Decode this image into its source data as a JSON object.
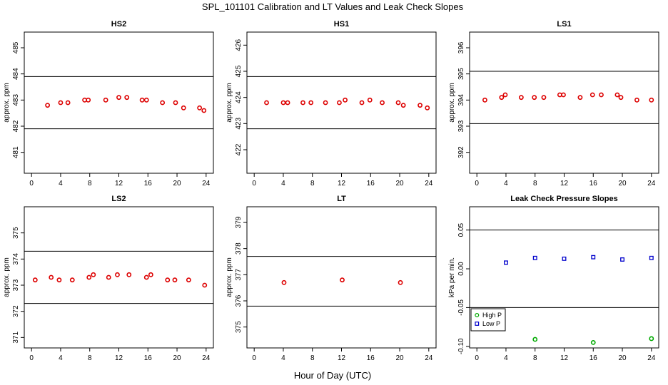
{
  "figure": {
    "title": "SPL_101101  Calibration and LT Values and Leak Check Slopes",
    "xlabel": "Hour of Day (UTC)"
  },
  "colors": {
    "cal": "#dd0000",
    "high": "#00aa00",
    "low": "#0000cc",
    "axis": "#000000"
  },
  "chart_data": [
    {
      "type": "scatter",
      "title": "HS2",
      "ylabel": "approx. ppm",
      "xlim": [
        -1,
        25
      ],
      "ylim": [
        480.2,
        485.6
      ],
      "xticks": [
        0,
        4,
        8,
        12,
        16,
        20,
        24
      ],
      "yticks": [
        481,
        482,
        483,
        484,
        485
      ],
      "hlines": [
        481.9,
        483.9
      ],
      "series": [
        {
          "marker": "circle",
          "color": "#dd0000",
          "points": [
            [
              2.2,
              482.8
            ],
            [
              4.0,
              482.9
            ],
            [
              5.0,
              482.9
            ],
            [
              7.3,
              483.0
            ],
            [
              7.8,
              483.0
            ],
            [
              10.2,
              483.0
            ],
            [
              12.0,
              483.1
            ],
            [
              13.1,
              483.1
            ],
            [
              15.2,
              483.0
            ],
            [
              15.8,
              483.0
            ],
            [
              18.0,
              482.9
            ],
            [
              19.8,
              482.9
            ],
            [
              20.9,
              482.7
            ],
            [
              23.1,
              482.7
            ],
            [
              23.7,
              482.6
            ]
          ]
        }
      ]
    },
    {
      "type": "scatter",
      "title": "HS1",
      "ylabel": "approx. ppm",
      "xlim": [
        -1,
        25
      ],
      "ylim": [
        421.1,
        426.5
      ],
      "xticks": [
        0,
        4,
        8,
        12,
        16,
        20,
        24
      ],
      "yticks": [
        422,
        423,
        424,
        425,
        426
      ],
      "hlines": [
        422.8,
        424.8
      ],
      "series": [
        {
          "marker": "circle",
          "color": "#dd0000",
          "points": [
            [
              1.7,
              423.8
            ],
            [
              4.0,
              423.8
            ],
            [
              4.6,
              423.8
            ],
            [
              6.7,
              423.8
            ],
            [
              7.8,
              423.8
            ],
            [
              9.8,
              423.8
            ],
            [
              11.7,
              423.8
            ],
            [
              12.5,
              423.9
            ],
            [
              14.8,
              423.8
            ],
            [
              15.9,
              423.9
            ],
            [
              17.6,
              423.8
            ],
            [
              19.8,
              423.8
            ],
            [
              20.5,
              423.7
            ],
            [
              22.8,
              423.7
            ],
            [
              23.8,
              423.6
            ]
          ]
        }
      ]
    },
    {
      "type": "scatter",
      "title": "LS1",
      "ylabel": "approx. ppm",
      "xlim": [
        -1,
        25
      ],
      "ylim": [
        391.2,
        396.6
      ],
      "xticks": [
        0,
        4,
        8,
        12,
        16,
        20,
        24
      ],
      "yticks": [
        392,
        393,
        394,
        395,
        396
      ],
      "hlines": [
        393.1,
        395.1
      ],
      "series": [
        {
          "marker": "circle",
          "color": "#dd0000",
          "points": [
            [
              1.1,
              394.0
            ],
            [
              3.4,
              394.1
            ],
            [
              3.9,
              394.2
            ],
            [
              6.1,
              394.1
            ],
            [
              7.9,
              394.1
            ],
            [
              9.2,
              394.1
            ],
            [
              11.4,
              394.2
            ],
            [
              11.9,
              394.2
            ],
            [
              14.2,
              394.1
            ],
            [
              15.9,
              394.2
            ],
            [
              17.1,
              394.2
            ],
            [
              19.3,
              394.2
            ],
            [
              19.8,
              394.1
            ],
            [
              22.0,
              394.0
            ],
            [
              24.0,
              394.0
            ]
          ]
        }
      ]
    },
    {
      "type": "scatter",
      "title": "LS2",
      "ylabel": "approx. ppm",
      "xlim": [
        -1,
        25
      ],
      "ylim": [
        370.6,
        376.0
      ],
      "xticks": [
        0,
        4,
        8,
        12,
        16,
        20,
        24
      ],
      "yticks": [
        371,
        372,
        373,
        374,
        375
      ],
      "hlines": [
        372.3,
        374.3
      ],
      "series": [
        {
          "marker": "circle",
          "color": "#dd0000",
          "points": [
            [
              0.5,
              373.2
            ],
            [
              2.7,
              373.3
            ],
            [
              3.8,
              373.2
            ],
            [
              5.6,
              373.2
            ],
            [
              7.9,
              373.3
            ],
            [
              8.5,
              373.4
            ],
            [
              10.6,
              373.3
            ],
            [
              11.8,
              373.4
            ],
            [
              13.4,
              373.4
            ],
            [
              15.8,
              373.3
            ],
            [
              16.4,
              373.4
            ],
            [
              18.7,
              373.2
            ],
            [
              19.7,
              373.2
            ],
            [
              21.6,
              373.2
            ],
            [
              23.8,
              373.0
            ]
          ]
        }
      ]
    },
    {
      "type": "scatter",
      "title": "LT",
      "ylabel": "approx. ppm",
      "xlim": [
        -1,
        25
      ],
      "ylim": [
        374.2,
        379.6
      ],
      "xticks": [
        0,
        4,
        8,
        12,
        16,
        20,
        24
      ],
      "yticks": [
        375,
        376,
        377,
        378,
        379
      ],
      "hlines": [
        375.8,
        377.7
      ],
      "series": [
        {
          "marker": "circle",
          "color": "#dd0000",
          "points": [
            [
              4.1,
              376.7
            ],
            [
              12.1,
              376.8
            ],
            [
              20.1,
              376.7
            ]
          ]
        }
      ]
    },
    {
      "type": "scatter",
      "title": "Leak Check Pressure Slopes",
      "ylabel": "kPa per min.",
      "xlim": [
        -1,
        25
      ],
      "ylim": [
        -0.102,
        0.08
      ],
      "xticks": [
        0,
        4,
        8,
        12,
        16,
        20,
        24
      ],
      "yticks": [
        -0.1,
        -0.05,
        0.0,
        0.05
      ],
      "ytick_labels": [
        "-0.10",
        "-0.05",
        "0.00",
        "0.05"
      ],
      "hlines": [
        -0.05,
        0.05
      ],
      "series": [
        {
          "name": "High P",
          "marker": "circle",
          "color": "#00aa00",
          "points": [
            [
              8.0,
              -0.091
            ],
            [
              16.0,
              -0.095
            ],
            [
              24.0,
              -0.09
            ]
          ]
        },
        {
          "name": "Low P",
          "marker": "square",
          "color": "#0000cc",
          "points": [
            [
              4.0,
              0.008
            ],
            [
              8.0,
              0.014
            ],
            [
              12.0,
              0.013
            ],
            [
              16.0,
              0.015
            ],
            [
              20.0,
              0.012
            ],
            [
              24.0,
              0.014
            ]
          ]
        }
      ],
      "legend": "bottom-left"
    }
  ]
}
